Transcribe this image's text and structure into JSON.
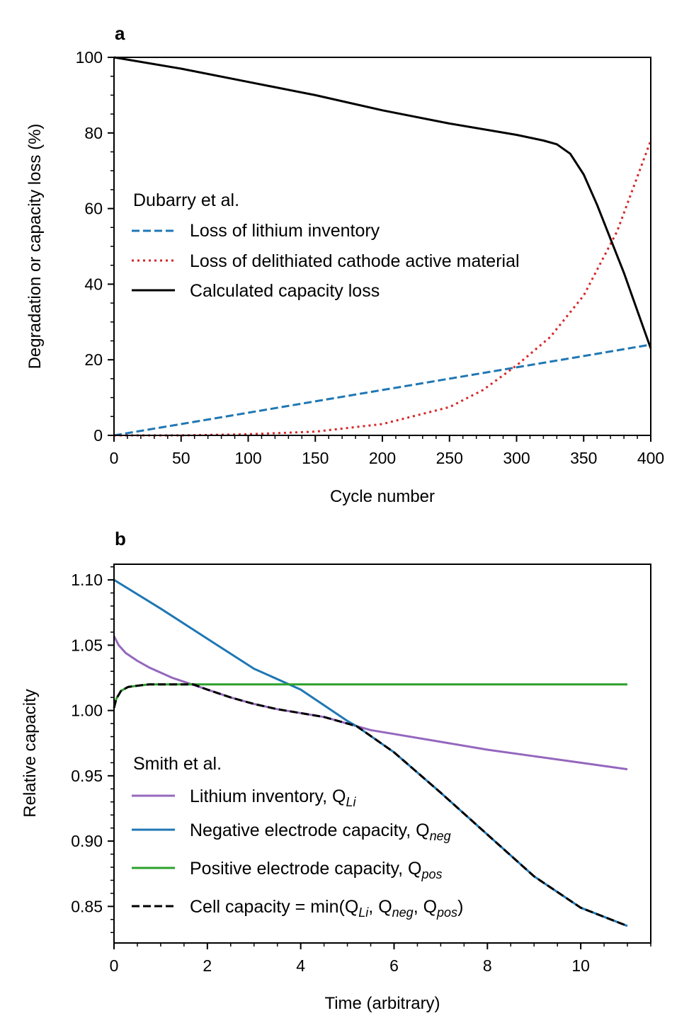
{
  "chart_data": [
    {
      "panel_label": "a",
      "type": "line",
      "xlabel": "Cycle number",
      "ylabel": "Degradation or capacity loss (%)",
      "xlim": [
        0,
        400
      ],
      "ylim": [
        0,
        100
      ],
      "xticks": [
        0,
        50,
        100,
        150,
        200,
        250,
        300,
        350,
        400
      ],
      "xtick_labels": [
        "0",
        "50",
        "100",
        "150",
        "200",
        "250",
        "300",
        "350",
        "400"
      ],
      "yticks": [
        0,
        20,
        40,
        60,
        80,
        100
      ],
      "ytick_labels": [
        "0",
        "20",
        "40",
        "60",
        "80",
        "100"
      ],
      "grid": false,
      "legend": {
        "title": "Dubarry et al.",
        "placement": "center-left"
      },
      "series": [
        {
          "name": "Loss of lithium inventory",
          "color": "#1f77b4",
          "style": "dashed",
          "x": [
            0,
            50,
            100,
            150,
            200,
            250,
            300,
            350,
            400
          ],
          "y": [
            0,
            3,
            6,
            9,
            12,
            15,
            18,
            21,
            24
          ]
        },
        {
          "name": "Loss of delithiated cathode active material",
          "color": "#d62728",
          "style": "dotted",
          "x": [
            0,
            50,
            100,
            150,
            200,
            250,
            275,
            300,
            325,
            350,
            375,
            400
          ],
          "y": [
            0,
            0,
            0.3,
            1.0,
            3.0,
            7.5,
            12,
            18.5,
            26,
            37,
            54,
            78
          ]
        },
        {
          "name": "Calculated capacity loss",
          "color": "#000000",
          "style": "solid",
          "x": [
            0,
            50,
            100,
            150,
            200,
            250,
            300,
            320,
            330,
            340,
            350,
            360,
            370,
            380,
            390,
            400
          ],
          "y": [
            100,
            97,
            93.5,
            90,
            86,
            82.5,
            79.5,
            78,
            77,
            74.5,
            69,
            61,
            52,
            43,
            33,
            23
          ]
        }
      ]
    },
    {
      "panel_label": "b",
      "type": "line",
      "xlabel": "Time (arbitrary)",
      "ylabel": "Relative capacity",
      "xlim": [
        0,
        11.5
      ],
      "ylim": [
        0.822,
        1.112
      ],
      "xticks": [
        0,
        2,
        4,
        6,
        8,
        10
      ],
      "xtick_labels": [
        "0",
        "2",
        "4",
        "6",
        "8",
        "10"
      ],
      "yticks": [
        0.85,
        0.9,
        0.95,
        1.0,
        1.05,
        1.1
      ],
      "ytick_labels": [
        "0.85",
        "0.90",
        "0.95",
        "1.00",
        "1.05",
        "1.10"
      ],
      "grid": false,
      "legend": {
        "title": "Smith et al.",
        "placement": "lower-left"
      },
      "series": [
        {
          "name_text": "Lithium inventory, Q",
          "name_sub": "Li",
          "color": "#9467bd",
          "style": "solid",
          "x": [
            0,
            0.1,
            0.25,
            0.5,
            0.75,
            1,
            1.25,
            1.5,
            2,
            2.5,
            3,
            3.5,
            4,
            4.5,
            5,
            5.5,
            6,
            7,
            8,
            9,
            10,
            11
          ],
          "y": [
            1.057,
            1.05,
            1.044,
            1.038,
            1.033,
            1.029,
            1.025,
            1.022,
            1.016,
            1.01,
            1.005,
            1.001,
            0.998,
            0.995,
            0.99,
            0.985,
            0.982,
            0.976,
            0.97,
            0.965,
            0.96,
            0.955
          ]
        },
        {
          "name_text": "Negative electrode capacity, Q",
          "name_sub": "neg",
          "color": "#1f77b4",
          "style": "solid",
          "x": [
            0,
            1,
            2,
            3,
            4,
            5,
            5.2,
            6,
            7,
            8,
            9,
            10,
            11
          ],
          "y": [
            1.1,
            1.078,
            1.055,
            1.032,
            1.016,
            0.992,
            0.988,
            0.968,
            0.937,
            0.905,
            0.873,
            0.849,
            0.835
          ]
        },
        {
          "name_text": "Positive electrode capacity, Q",
          "name_sub": "pos",
          "color": "#2ca02c",
          "style": "solid",
          "x": [
            0,
            0.05,
            0.15,
            0.3,
            0.5,
            0.75,
            1,
            1.5,
            2,
            4,
            6,
            8,
            10,
            11
          ],
          "y": [
            1.002,
            1.009,
            1.015,
            1.018,
            1.019,
            1.02,
            1.02,
            1.02,
            1.02,
            1.02,
            1.02,
            1.02,
            1.02,
            1.02
          ]
        },
        {
          "name_text": "Cell capacity = min(Q",
          "name_parts": [
            "Li",
            ", Q",
            "neg",
            ", Q",
            "pos",
            ")"
          ],
          "color": "#000000",
          "style": "dashed",
          "x": [
            0,
            0.05,
            0.15,
            0.3,
            0.5,
            0.75,
            1,
            1.5,
            1.7,
            2,
            2.5,
            3,
            3.5,
            4,
            4.5,
            5,
            5.2,
            6,
            7,
            8,
            9,
            10,
            11
          ],
          "y": [
            1.002,
            1.009,
            1.015,
            1.018,
            1.019,
            1.02,
            1.02,
            1.02,
            1.02,
            1.016,
            1.01,
            1.005,
            1.001,
            0.998,
            0.995,
            0.99,
            0.988,
            0.968,
            0.937,
            0.905,
            0.873,
            0.849,
            0.835
          ]
        }
      ]
    }
  ]
}
